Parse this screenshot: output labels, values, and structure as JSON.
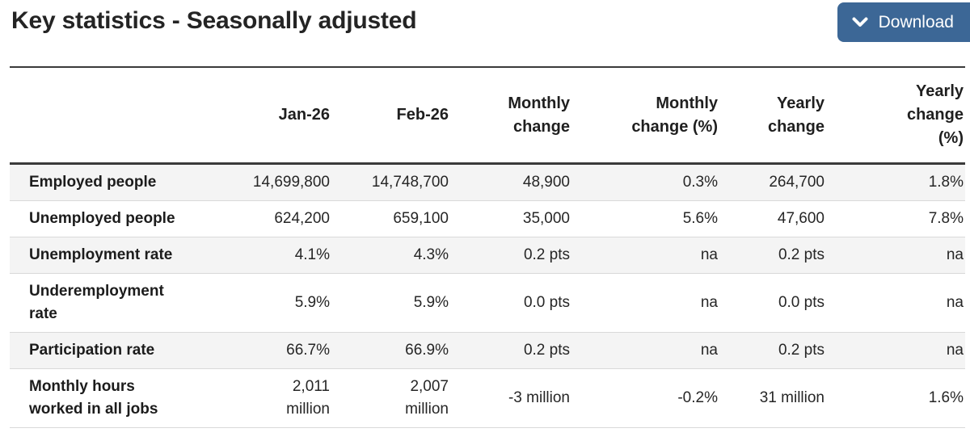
{
  "page": {
    "title": "Key statistics - Seasonally adjusted",
    "download_label": "Download"
  },
  "colors": {
    "accent": "#3c6796",
    "stripe": "#f4f4f4",
    "rule_dark": "#3a3a3a",
    "rule_light": "#d9d9d9"
  },
  "table": {
    "columns": [
      {
        "id": "row-label",
        "lines": [
          ""
        ]
      },
      {
        "id": "jan-26",
        "lines": [
          "Jan-26"
        ]
      },
      {
        "id": "feb-26",
        "lines": [
          "Feb-26"
        ]
      },
      {
        "id": "monthly-change",
        "lines": [
          "Monthly",
          "change"
        ]
      },
      {
        "id": "monthly-change-pct",
        "lines": [
          "Monthly",
          "change (%)"
        ]
      },
      {
        "id": "yearly-change",
        "lines": [
          "Yearly",
          "change"
        ]
      },
      {
        "id": "yearly-change-pct",
        "lines": [
          "Yearly",
          "change",
          "(%)"
        ]
      }
    ],
    "rows": [
      {
        "cells": [
          [
            "Employed people"
          ],
          [
            "14,699,800"
          ],
          [
            "14,748,700"
          ],
          [
            "48,900"
          ],
          [
            "0.3%"
          ],
          [
            "264,700"
          ],
          [
            "1.8%"
          ]
        ]
      },
      {
        "cells": [
          [
            "Unemployed people"
          ],
          [
            "624,200"
          ],
          [
            "659,100"
          ],
          [
            "35,000"
          ],
          [
            "5.6%"
          ],
          [
            "47,600"
          ],
          [
            "7.8%"
          ]
        ]
      },
      {
        "cells": [
          [
            "Unemployment rate"
          ],
          [
            "4.1%"
          ],
          [
            "4.3%"
          ],
          [
            "0.2 pts"
          ],
          [
            "na"
          ],
          [
            "0.2 pts"
          ],
          [
            "na"
          ]
        ]
      },
      {
        "cells": [
          [
            "Underemployment",
            "rate"
          ],
          [
            "5.9%"
          ],
          [
            "5.9%"
          ],
          [
            "0.0 pts"
          ],
          [
            "na"
          ],
          [
            "0.0 pts"
          ],
          [
            "na"
          ]
        ]
      },
      {
        "cells": [
          [
            "Participation rate"
          ],
          [
            "66.7%"
          ],
          [
            "66.9%"
          ],
          [
            "0.2 pts"
          ],
          [
            "na"
          ],
          [
            "0.2 pts"
          ],
          [
            "na"
          ]
        ]
      },
      {
        "cells": [
          [
            "Monthly hours",
            "worked in all jobs"
          ],
          [
            "2,011",
            "million"
          ],
          [
            "2,007",
            "million"
          ],
          [
            "-3 million"
          ],
          [
            "-0.2%"
          ],
          [
            "31 million"
          ],
          [
            "1.6%"
          ]
        ]
      }
    ]
  }
}
